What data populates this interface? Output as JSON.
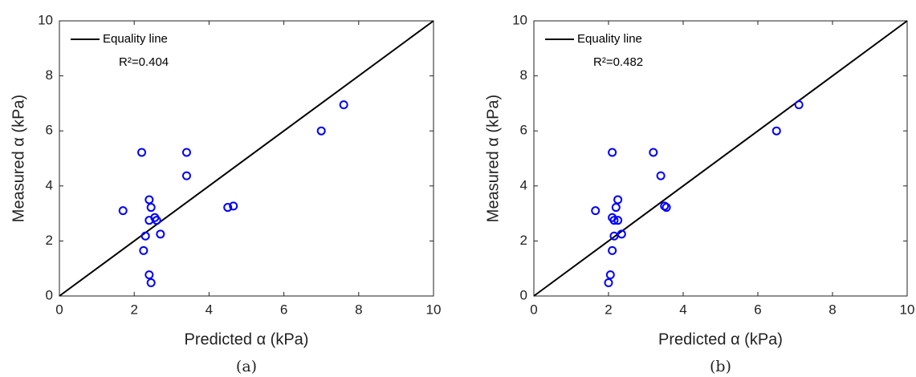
{
  "chart_data": [
    {
      "type": "scatter",
      "caption": "(a)",
      "xlabel": "Predicted α (kPa)",
      "ylabel": "Measured α (kPa)",
      "annotation": "R²=0.404",
      "legend": "upper left",
      "xlim": [
        0,
        10
      ],
      "ylim": [
        0,
        10
      ],
      "xticks": [
        0,
        2,
        4,
        6,
        8,
        10
      ],
      "yticks": [
        0,
        2,
        4,
        6,
        8,
        10
      ],
      "series": [
        {
          "name": "Equality line",
          "type": "line",
          "color": "#000000",
          "x": [
            0,
            10
          ],
          "values": [
            0,
            10
          ]
        },
        {
          "type": "scatter",
          "color": "#0000ff",
          "x": [
            2.2,
            3.4,
            3.4,
            7.6,
            7.0,
            1.7,
            2.4,
            2.45,
            4.5,
            4.65,
            2.55,
            2.6,
            2.4,
            2.7,
            2.3,
            2.25,
            2.4,
            2.45
          ],
          "values": [
            5.22,
            5.22,
            4.37,
            6.95,
            6.0,
            3.1,
            3.5,
            3.22,
            3.22,
            3.27,
            2.85,
            2.75,
            2.75,
            2.25,
            2.18,
            1.65,
            0.77,
            0.48
          ]
        }
      ]
    },
    {
      "type": "scatter",
      "caption": "(b)",
      "xlabel": "Predicted α (kPa)",
      "ylabel": "Measured α (kPa)",
      "annotation": "R²=0.482",
      "legend": "upper left",
      "xlim": [
        0,
        10
      ],
      "ylim": [
        0,
        10
      ],
      "xticks": [
        0,
        2,
        4,
        6,
        8,
        10
      ],
      "yticks": [
        0,
        2,
        4,
        6,
        8,
        10
      ],
      "series": [
        {
          "name": "Equality line",
          "type": "line",
          "color": "#000000",
          "x": [
            0,
            10
          ],
          "values": [
            0,
            10
          ]
        },
        {
          "type": "scatter",
          "color": "#0000ff",
          "x": [
            2.1,
            3.2,
            3.4,
            7.1,
            6.5,
            1.65,
            2.25,
            2.2,
            3.5,
            3.55,
            2.1,
            2.25,
            2.15,
            2.35,
            2.15,
            2.1,
            2.05,
            2.0
          ],
          "values": [
            5.22,
            5.22,
            4.37,
            6.95,
            6.0,
            3.1,
            3.5,
            3.22,
            3.27,
            3.22,
            2.85,
            2.75,
            2.75,
            2.25,
            2.18,
            1.65,
            0.77,
            0.48
          ]
        }
      ]
    }
  ]
}
